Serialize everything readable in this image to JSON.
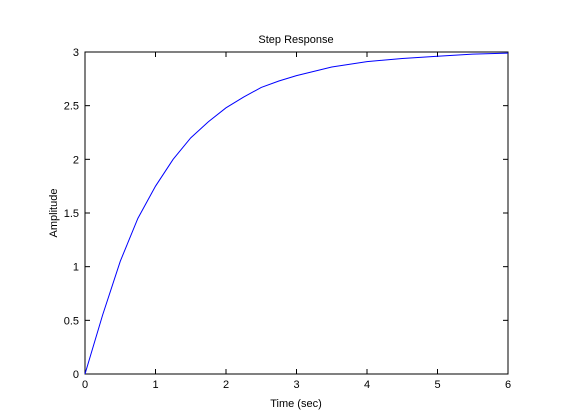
{
  "chart_data": {
    "type": "line",
    "title": "Step Response",
    "x_label": "Time (sec)",
    "y_label": "Amplitude",
    "x": [
      0,
      0.25,
      0.5,
      0.75,
      1,
      1.25,
      1.5,
      1.75,
      2,
      2.25,
      2.5,
      2.75,
      3,
      3.5,
      4,
      4.5,
      5,
      5.5,
      6
    ],
    "series": [
      {
        "color": "#0000ff",
        "values": [
          0,
          0.55,
          1.05,
          1.45,
          1.75,
          2.0,
          2.2,
          2.35,
          2.48,
          2.58,
          2.67,
          2.73,
          2.78,
          2.86,
          2.91,
          2.94,
          2.96,
          2.98,
          2.99
        ]
      }
    ],
    "xlim": [
      0,
      6
    ],
    "ylim": [
      0,
      3
    ],
    "xticks": [
      0,
      1,
      2,
      3,
      4,
      5,
      6
    ],
    "yticks": [
      0,
      0.5,
      1,
      1.5,
      2,
      2.5,
      3
    ]
  }
}
